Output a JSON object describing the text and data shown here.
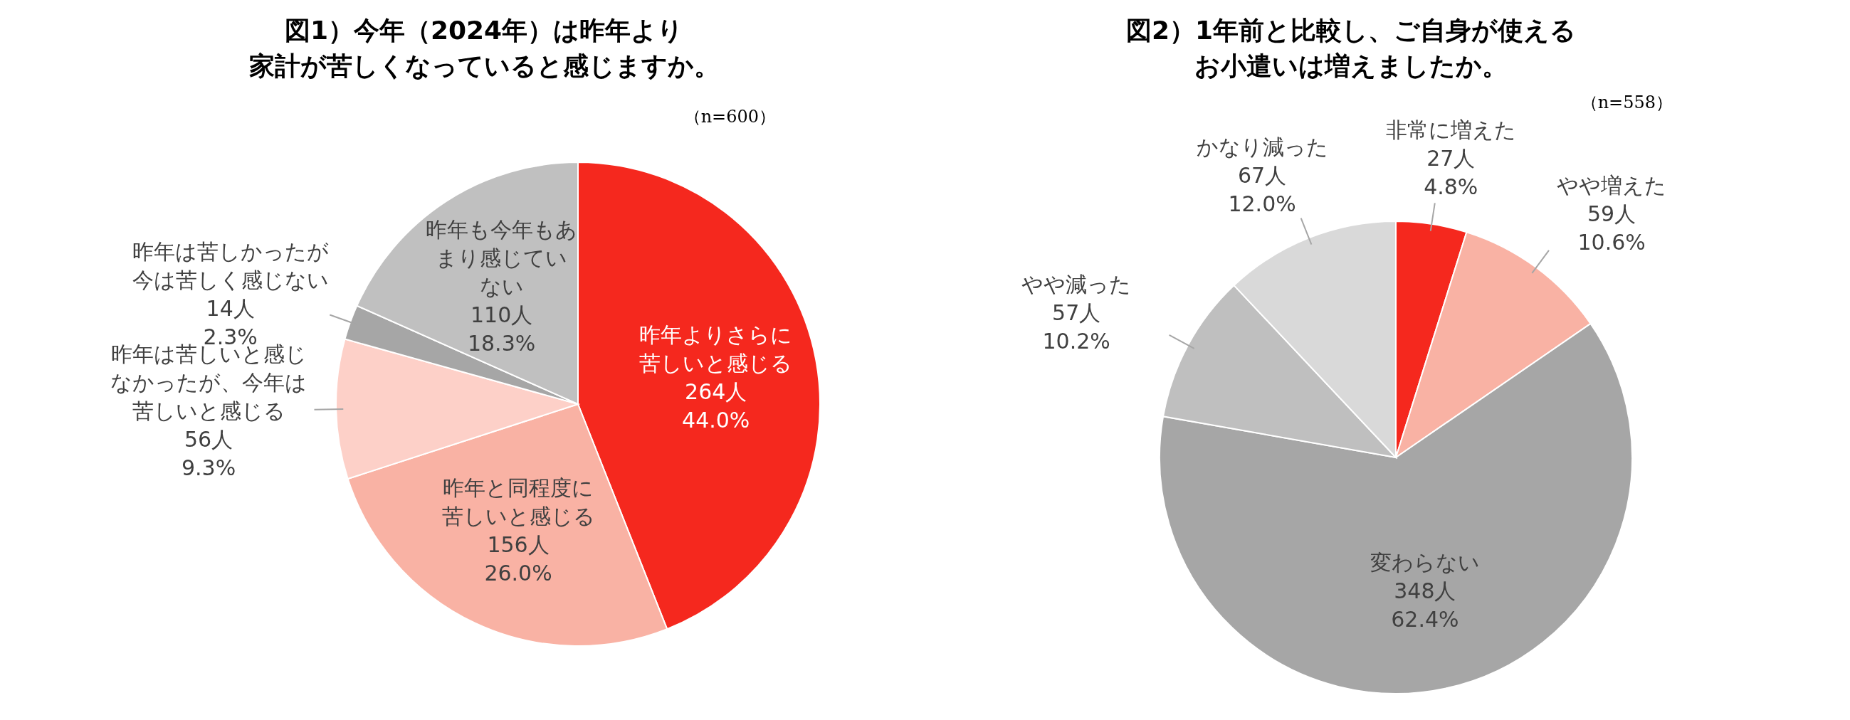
{
  "chart_data": [
    {
      "type": "pie",
      "title": "図1）今年（2024年）は昨年より",
      "subtitle": "家計が苦しくなっていると感じますか。",
      "annotations": [
        "（n=600）"
      ],
      "categories": [
        "昨年よりさらに苦しいと感じる",
        "昨年と同程度に苦しいと感じる",
        "昨年は苦しいと感じなかったが、今年は苦しいと感じる",
        "昨年は苦しかったが今は苦しく感じない",
        "昨年も今年もあまり感じていない"
      ],
      "values": [
        264,
        156,
        56,
        14,
        110
      ],
      "value_labels": [
        "264人\n44.0%",
        "156人\n26.0%",
        "56人\n9.3%",
        "14人\n2.3%",
        "110人\n18.3%"
      ],
      "colors": [
        "#f5281e",
        "#f9b2a4",
        "#fdd0c8",
        "#a6a6a6",
        "#c0c0c0"
      ]
    },
    {
      "type": "pie",
      "title": "図2）1年前と比較し、ご自身が使える",
      "subtitle": "お小遣いは増えましたか。",
      "annotations": [
        "（n=558）"
      ],
      "categories": [
        "非常に増えた",
        "やや増えた",
        "変わらない",
        "やや減った",
        "かなり減った"
      ],
      "values": [
        27,
        59,
        348,
        57,
        67
      ],
      "value_labels": [
        "27人\n4.8%",
        "59人\n10.6%",
        "348人\n62.4%",
        "57人\n10.2%",
        "67人\n12.0%"
      ],
      "colors": [
        "#f5281e",
        "#f9b2a4",
        "#a6a6a6",
        "#bfbfbf",
        "#d9d9d9"
      ]
    }
  ]
}
